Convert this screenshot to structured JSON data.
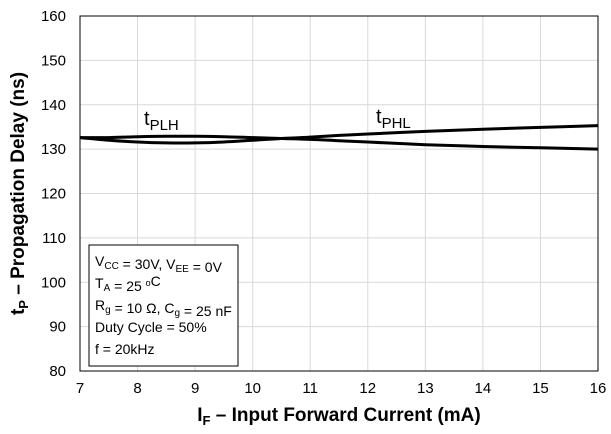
{
  "chart_data": {
    "type": "line",
    "xlabel": {
      "main": "I",
      "sub": "F",
      "rest": " – Input Forward Current (mA)"
    },
    "ylabel": {
      "main": "t",
      "sub": "P",
      "rest": " – Propagation Delay  (ns)"
    },
    "xlim": [
      7,
      16
    ],
    "ylim": [
      80,
      160
    ],
    "xticks": [
      "7",
      "8",
      "9",
      "10",
      "11",
      "12",
      "13",
      "14",
      "15",
      "16"
    ],
    "yticks": [
      "80",
      "90",
      "100",
      "110",
      "120",
      "130",
      "140",
      "150",
      "160"
    ],
    "grid": true,
    "series": [
      {
        "name": "tPLH",
        "label_main": "t",
        "label_sub": "PLH",
        "x": [
          7,
          7.5,
          8,
          8.5,
          9,
          9.5,
          10,
          10.5,
          11,
          11.5,
          12,
          13,
          14,
          15,
          16
        ],
        "y": [
          132.6,
          132.6,
          132.8,
          132.9,
          132.9,
          132.8,
          132.6,
          132.4,
          132.2,
          131.9,
          131.6,
          131.0,
          130.6,
          130.3,
          130.0
        ]
      },
      {
        "name": "tPHL",
        "label_main": "t",
        "label_sub": "PHL",
        "x": [
          7,
          7.5,
          8,
          8.5,
          9,
          9.5,
          10,
          10.5,
          11,
          11.5,
          12,
          13,
          14,
          15,
          16
        ],
        "y": [
          132.6,
          132.0,
          131.6,
          131.4,
          131.4,
          131.6,
          132.0,
          132.4,
          132.7,
          133.1,
          133.4,
          134.0,
          134.5,
          134.9,
          135.3
        ]
      }
    ],
    "conditions": [
      [
        {
          "t": "V"
        },
        {
          "t": "CC",
          "s": "sub"
        },
        {
          "t": " = 30V, V"
        },
        {
          "t": "EE",
          "s": "sub"
        },
        {
          "t": " = 0V"
        }
      ],
      [
        {
          "t": "T"
        },
        {
          "t": "A",
          "s": "sub"
        },
        {
          "t": " = 25 "
        },
        {
          "t": "o",
          "s": "sup"
        },
        {
          "t": "C"
        }
      ],
      [
        {
          "t": "R"
        },
        {
          "t": "g",
          "s": "sub"
        },
        {
          "t": " = 10 Ω, C"
        },
        {
          "t": "g",
          "s": "sub"
        },
        {
          "t": " = 25 nF"
        }
      ],
      [
        {
          "t": "Duty Cycle = 50%"
        }
      ],
      [
        {
          "t": "f = 20kHz"
        }
      ]
    ]
  }
}
